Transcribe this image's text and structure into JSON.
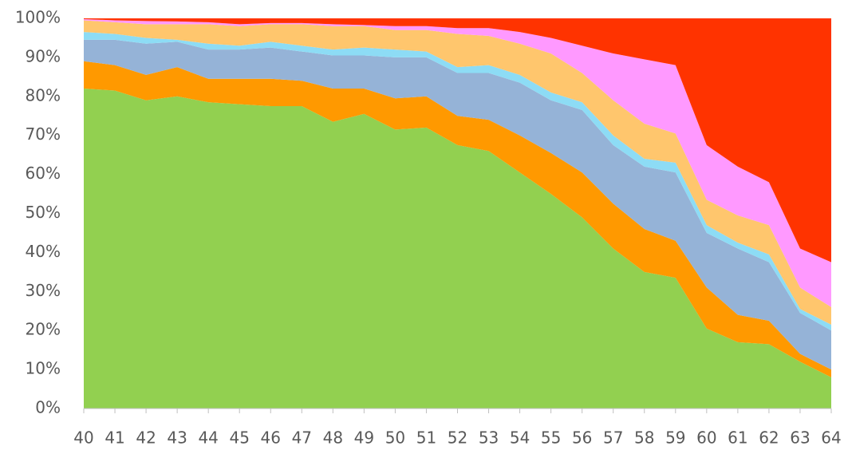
{
  "chart_data": {
    "type": "stacked_area_100",
    "categories": [
      "40",
      "41",
      "42",
      "43",
      "44",
      "45",
      "46",
      "47",
      "48",
      "49",
      "50",
      "51",
      "52",
      "53",
      "54",
      "55",
      "56",
      "57",
      "58",
      "59",
      "60",
      "61",
      "62",
      "63",
      "64"
    ],
    "series": [
      {
        "color": "#92d050",
        "values": [
          82,
          81.5,
          79,
          80,
          78.5,
          78,
          77.5,
          77.5,
          73.5,
          75.5,
          71.5,
          72,
          67.5,
          66,
          60.5,
          55,
          49,
          41,
          35,
          33.5,
          20.5,
          17,
          16.5,
          12,
          8
        ]
      },
      {
        "color": "#ff9900",
        "values": [
          7,
          6.5,
          6.5,
          7.5,
          6,
          6.5,
          7,
          6.5,
          8.5,
          6.5,
          8,
          8,
          7.5,
          8,
          9.5,
          10.5,
          11.5,
          11.5,
          11,
          9.5,
          10.5,
          7,
          6,
          2,
          2
        ]
      },
      {
        "color": "#95b3d7",
        "values": [
          5.5,
          6.5,
          8,
          6.5,
          7.5,
          7.5,
          8,
          7.5,
          8.5,
          8.5,
          10.5,
          10,
          11,
          12,
          13.5,
          13.5,
          16,
          15,
          16,
          17.5,
          14,
          17,
          15,
          10.5,
          10
        ]
      },
      {
        "color": "#8ddcf5",
        "values": [
          2,
          1.5,
          1.5,
          0.5,
          1.5,
          1,
          1.5,
          1.5,
          1.5,
          2,
          2,
          1.5,
          1.5,
          2,
          2,
          2,
          2,
          2.5,
          2,
          2.5,
          2,
          1.5,
          2,
          1,
          1.5
        ]
      },
      {
        "color": "#ffc66d",
        "values": [
          3,
          3,
          3.5,
          4,
          5,
          5,
          4.5,
          5.5,
          6,
          5.5,
          5,
          5.5,
          8.5,
          7.5,
          8,
          10,
          7.5,
          9,
          9,
          7.5,
          6.5,
          7,
          7.5,
          5.5,
          4.5
        ]
      },
      {
        "color": "#ff99ff",
        "values": [
          0.3,
          0.5,
          0.8,
          0.7,
          0.5,
          0.5,
          0.3,
          0.3,
          0.5,
          0.3,
          1,
          1,
          1.5,
          2,
          3,
          4,
          7,
          12,
          16.5,
          17.5,
          14,
          12.5,
          11,
          10,
          11.5
        ]
      },
      {
        "color": "#ff3300",
        "values": [
          0.2,
          0.5,
          0.7,
          0.8,
          1,
          1.5,
          1.2,
          1.2,
          1.5,
          1.7,
          2,
          2,
          2.5,
          2.5,
          3.5,
          5,
          7,
          9,
          10.5,
          12,
          32.5,
          38,
          42,
          59,
          62.5
        ]
      }
    ],
    "ylim": [
      0,
      100
    ],
    "yticks": [
      {
        "value": 0,
        "label": "0%"
      },
      {
        "value": 10,
        "label": "10%"
      },
      {
        "value": 20,
        "label": "20%"
      },
      {
        "value": 30,
        "label": "30%"
      },
      {
        "value": 40,
        "label": "40%"
      },
      {
        "value": 50,
        "label": "50%"
      },
      {
        "value": 60,
        "label": "60%"
      },
      {
        "value": 70,
        "label": "70%"
      },
      {
        "value": 80,
        "label": "80%"
      },
      {
        "value": 90,
        "label": "90%"
      },
      {
        "value": 100,
        "label": "100%"
      }
    ]
  }
}
